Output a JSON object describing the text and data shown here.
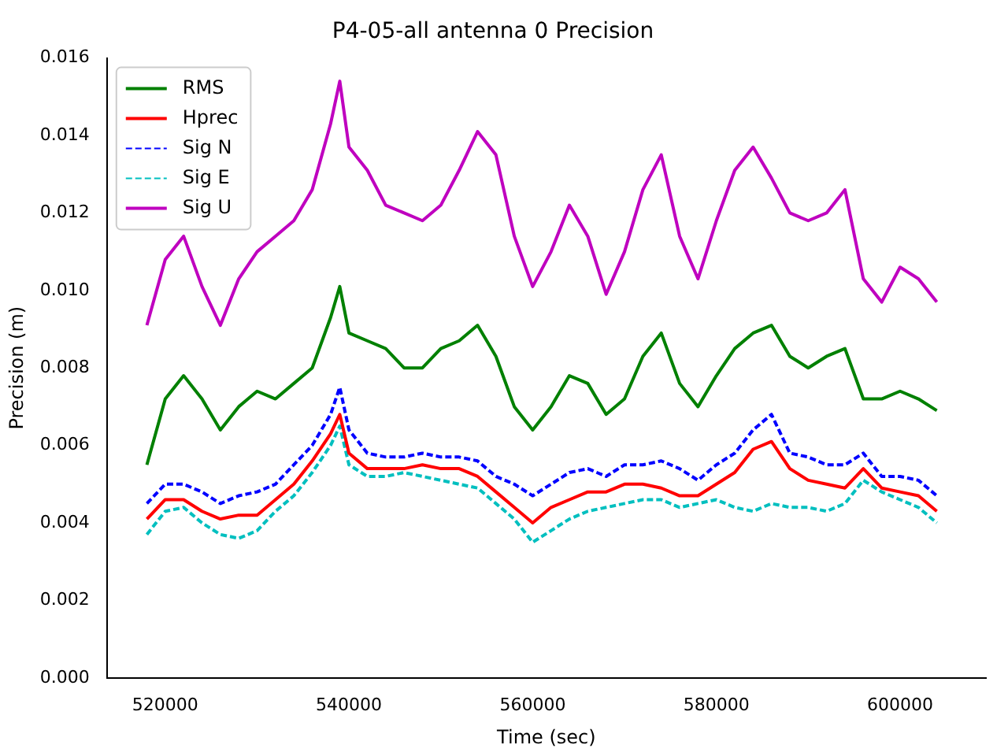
{
  "chart_data": {
    "type": "line",
    "title": "P4-05-all antenna 0 Precision",
    "xlabel": "Time (sec)",
    "ylabel": "Precision (m)",
    "x": [
      518000,
      520000,
      522000,
      524000,
      526000,
      528000,
      530000,
      532000,
      534000,
      536000,
      538000,
      539000,
      540000,
      542000,
      544000,
      546000,
      548000,
      550000,
      552000,
      554000,
      556000,
      558000,
      560000,
      562000,
      564000,
      566000,
      568000,
      570000,
      572000,
      574000,
      576000,
      578000,
      580000,
      582000,
      584000,
      586000,
      588000,
      590000,
      592000,
      594000,
      596000,
      598000,
      600000,
      602000,
      604000
    ],
    "series": [
      {
        "name": "RMS",
        "color": "#008000",
        "line_style": "solid",
        "values": [
          0.0055,
          0.0072,
          0.0078,
          0.0072,
          0.0064,
          0.007,
          0.0074,
          0.0072,
          0.0076,
          0.008,
          0.0093,
          0.0101,
          0.0089,
          0.0087,
          0.0085,
          0.008,
          0.008,
          0.0085,
          0.0087,
          0.0091,
          0.0083,
          0.007,
          0.0064,
          0.007,
          0.0078,
          0.0076,
          0.0068,
          0.0072,
          0.0083,
          0.0089,
          0.0076,
          0.007,
          0.0078,
          0.0085,
          0.0089,
          0.0091,
          0.0083,
          0.008,
          0.0083,
          0.0085,
          0.0072,
          0.0072,
          0.0074,
          0.0072,
          0.0069
        ]
      },
      {
        "name": "Hprec",
        "color": "#ff0000",
        "line_style": "solid",
        "values": [
          0.0041,
          0.0046,
          0.0046,
          0.0043,
          0.0041,
          0.0042,
          0.0042,
          0.0046,
          0.005,
          0.0056,
          0.0063,
          0.0068,
          0.0058,
          0.0054,
          0.0054,
          0.0054,
          0.0055,
          0.0054,
          0.0054,
          0.0052,
          0.0048,
          0.0044,
          0.004,
          0.0044,
          0.0046,
          0.0048,
          0.0048,
          0.005,
          0.005,
          0.0049,
          0.0047,
          0.0047,
          0.005,
          0.0053,
          0.0059,
          0.0061,
          0.0054,
          0.0051,
          0.005,
          0.0049,
          0.0054,
          0.0049,
          0.0048,
          0.0047,
          0.0043
        ]
      },
      {
        "name": "Sig N",
        "color": "#0000ff",
        "line_style": "dashed",
        "values": [
          0.0045,
          0.005,
          0.005,
          0.0048,
          0.0045,
          0.0047,
          0.0048,
          0.005,
          0.0055,
          0.006,
          0.0068,
          0.0075,
          0.0064,
          0.0058,
          0.0057,
          0.0057,
          0.0058,
          0.0057,
          0.0057,
          0.0056,
          0.0052,
          0.005,
          0.0047,
          0.005,
          0.0053,
          0.0054,
          0.0052,
          0.0055,
          0.0055,
          0.0056,
          0.0054,
          0.0051,
          0.0055,
          0.0058,
          0.0064,
          0.0068,
          0.0058,
          0.0057,
          0.0055,
          0.0055,
          0.0058,
          0.0052,
          0.0052,
          0.0051,
          0.0047
        ]
      },
      {
        "name": "Sig E",
        "color": "#00bfbf",
        "line_style": "dashed",
        "values": [
          0.0037,
          0.0043,
          0.0044,
          0.004,
          0.0037,
          0.0036,
          0.0038,
          0.0043,
          0.0047,
          0.0053,
          0.006,
          0.0065,
          0.0055,
          0.0052,
          0.0052,
          0.0053,
          0.0052,
          0.0051,
          0.005,
          0.0049,
          0.0045,
          0.0041,
          0.0035,
          0.0038,
          0.0041,
          0.0043,
          0.0044,
          0.0045,
          0.0046,
          0.0046,
          0.0044,
          0.0045,
          0.0046,
          0.0044,
          0.0043,
          0.0045,
          0.0044,
          0.0044,
          0.0043,
          0.0045,
          0.0051,
          0.0048,
          0.0046,
          0.0044,
          0.004
        ]
      },
      {
        "name": "Sig U",
        "color": "#bf00bf",
        "line_style": "solid",
        "values": [
          0.0091,
          0.0108,
          0.0114,
          0.0101,
          0.0091,
          0.0103,
          0.011,
          0.0114,
          0.0118,
          0.0126,
          0.0143,
          0.0154,
          0.0137,
          0.0131,
          0.0122,
          0.012,
          0.0118,
          0.0122,
          0.0131,
          0.0141,
          0.0135,
          0.0114,
          0.0101,
          0.011,
          0.0122,
          0.0114,
          0.0099,
          0.011,
          0.0126,
          0.0135,
          0.0114,
          0.0103,
          0.0118,
          0.0131,
          0.0137,
          0.0129,
          0.012,
          0.0118,
          0.012,
          0.0126,
          0.0103,
          0.0097,
          0.0106,
          0.0103,
          0.0097
        ]
      }
    ],
    "xlim": [
      513650,
      609350
    ],
    "xticks": [
      520000,
      540000,
      560000,
      580000,
      600000
    ],
    "ylim": [
      0,
      0.016
    ],
    "yticks": [
      {
        "value": 0,
        "label": "0.000"
      },
      {
        "value": 0.002,
        "label": "0.002"
      },
      {
        "value": 0.004,
        "label": "0.004"
      },
      {
        "value": 0.006,
        "label": "0.006"
      },
      {
        "value": 0.008,
        "label": "0.008"
      },
      {
        "value": 0.01,
        "label": "0.010"
      },
      {
        "value": 0.012,
        "label": "0.012"
      },
      {
        "value": 0.014,
        "label": "0.014"
      },
      {
        "value": 0.016,
        "label": "0.016"
      }
    ],
    "grid": false,
    "legend": "top left",
    "marker": "none"
  }
}
